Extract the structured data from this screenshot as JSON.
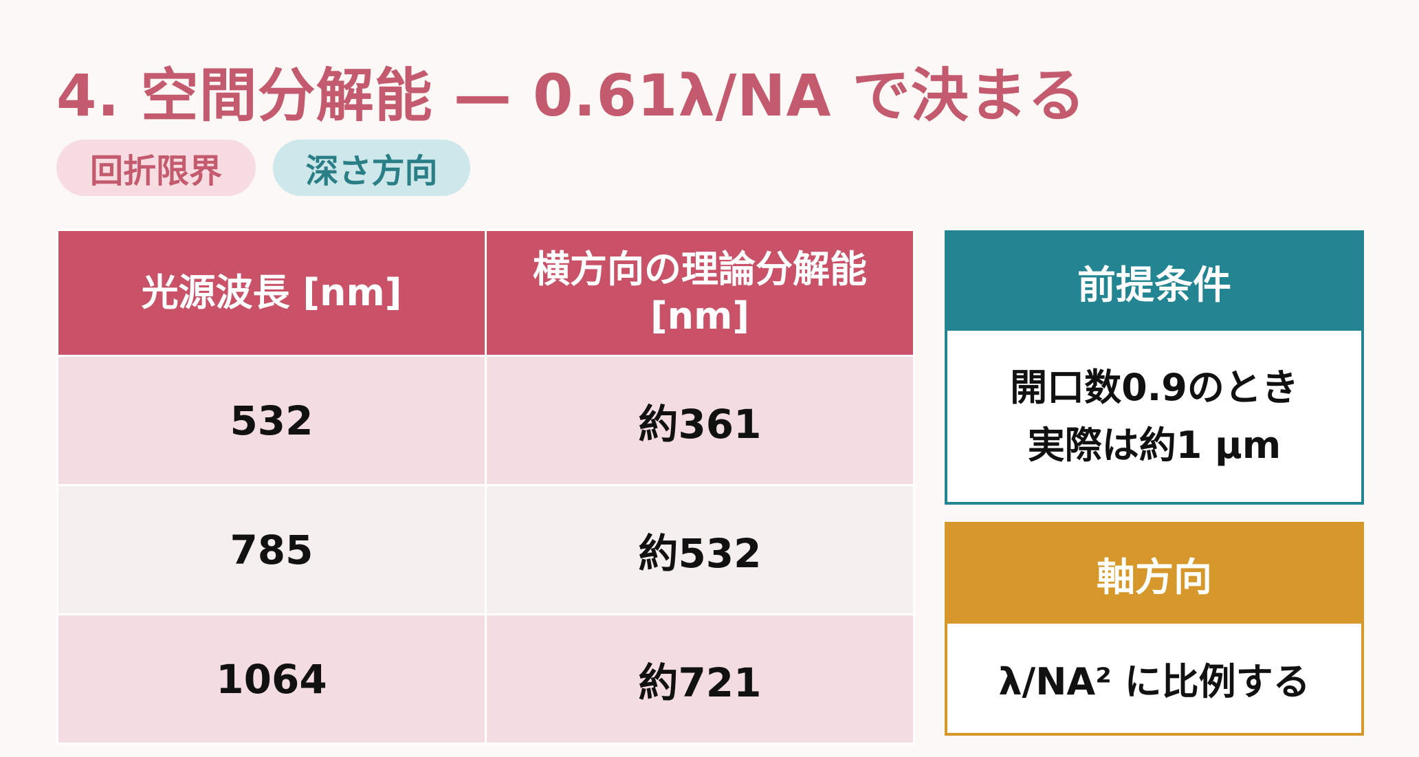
{
  "title": "4. 空間分解能 — 0.61λ/NA で決まる",
  "tags": [
    "回折限界",
    "深さ方向"
  ],
  "table": {
    "headers": [
      "光源波長 [nm]",
      "横方向の理論分解能 [nm]"
    ],
    "rows": [
      [
        "532",
        "約361"
      ],
      [
        "785",
        "約532"
      ],
      [
        "1064",
        "約721"
      ]
    ]
  },
  "cards": {
    "premise": {
      "title": "前提条件",
      "line1": "開口数0.9のとき",
      "line2": "実際は約1 μm"
    },
    "axial": {
      "title": "軸方向",
      "body": "λ/NA² に比例する"
    }
  },
  "colors": {
    "accent_pink": "#c95168",
    "accent_teal": "#228591",
    "accent_gold": "#d6982a"
  }
}
